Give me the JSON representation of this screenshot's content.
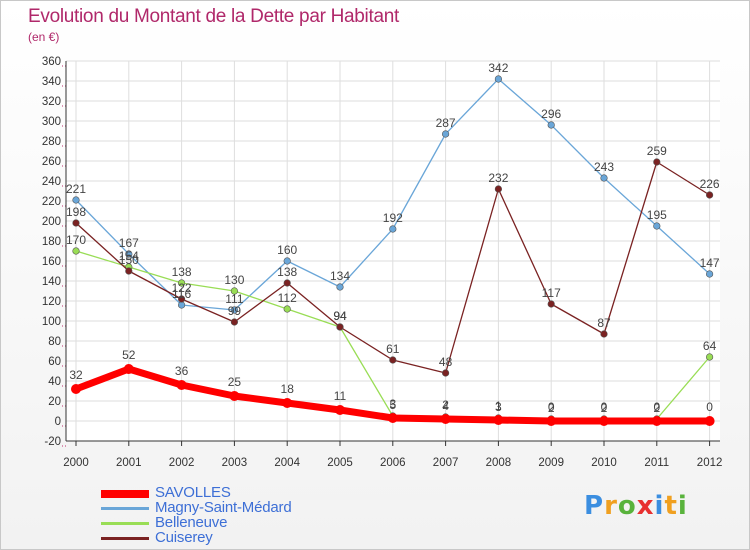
{
  "header": {
    "title": "Evolution du Montant de la Dette par Habitant",
    "subtitle": "(en €)"
  },
  "chart_data": {
    "type": "line",
    "x": [
      "2000",
      "2001",
      "2002",
      "2003",
      "2004",
      "2005",
      "2006",
      "2007",
      "2008",
      "2009",
      "2010",
      "2011",
      "2012"
    ],
    "ylim": [
      -20,
      360
    ],
    "yticks": [
      -20,
      0,
      20,
      40,
      60,
      80,
      100,
      120,
      140,
      160,
      180,
      200,
      220,
      240,
      260,
      280,
      300,
      320,
      340,
      360
    ],
    "grid": true,
    "legend_position": "bottom-left",
    "series": [
      {
        "name": "SAVOLLES",
        "color": "#ff0000",
        "values": [
          32,
          52,
          36,
          25,
          18,
          11,
          3,
          2,
          1,
          0,
          0,
          0,
          0
        ],
        "labels": [
          "32",
          "52",
          "36",
          "25",
          "18",
          "11",
          "3",
          "2",
          "1",
          "0",
          "0",
          "0",
          "0"
        ]
      },
      {
        "name": "Magny-Saint-Médard",
        "color": "#6aa6d8",
        "values": [
          221,
          167,
          116,
          111,
          160,
          134,
          192,
          287,
          342,
          296,
          243,
          195,
          147
        ],
        "labels": [
          "221",
          "167",
          "116",
          "111",
          "160",
          "134",
          "192",
          "287",
          "342",
          "296",
          "243",
          "195",
          "147"
        ]
      },
      {
        "name": "Belleneuve",
        "color": "#99dd55",
        "values": [
          170,
          154,
          138,
          130,
          112,
          94,
          5,
          4,
          3,
          2,
          2,
          2,
          64
        ],
        "labels": [
          "170",
          "154",
          "138",
          "130",
          "112",
          "94",
          "5",
          "4",
          "3",
          "2",
          "2",
          "2",
          "64"
        ]
      },
      {
        "name": "Cuiserey",
        "color": "#7a2222",
        "values": [
          198,
          150,
          122,
          99,
          138,
          94,
          61,
          48,
          232,
          117,
          87,
          259,
          226
        ],
        "labels": [
          "198",
          "150",
          "122",
          "99",
          "138",
          "94",
          "61",
          "48",
          "232",
          "117",
          "87",
          "259",
          "226"
        ]
      }
    ]
  },
  "logo": {
    "letters": [
      "P",
      "r",
      "o",
      "x",
      "i",
      "t",
      "i"
    ],
    "colors": [
      "#3b8ee0",
      "#f0a020",
      "#59b33c",
      "#e83030",
      "#3b8ee0",
      "#f0a020",
      "#59b33c"
    ]
  }
}
